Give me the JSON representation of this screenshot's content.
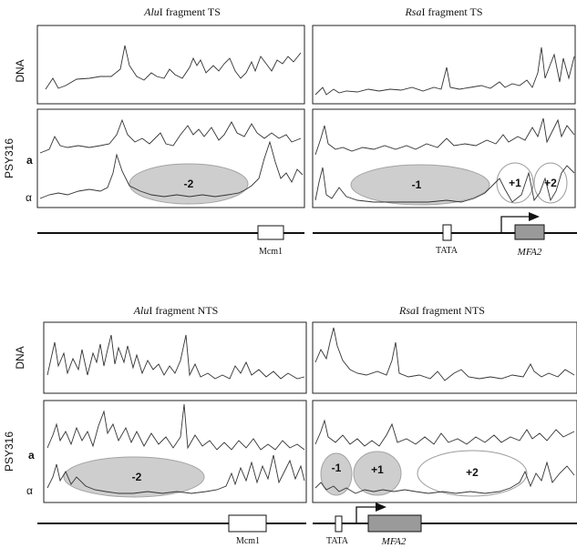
{
  "top": {
    "left_title_italic": "Alu",
    "left_title_rest": "I fragment TS",
    "right_title_italic": "Rsa",
    "right_title_rest": "I fragment TS",
    "row_dna": "DNA",
    "row_psy": "PSY316",
    "strain_a": "a",
    "strain_alpha": "α",
    "left_nucleosomes": [
      "-2"
    ],
    "right_nucleosomes": [
      "-1",
      "+1",
      "+2"
    ],
    "map_left_label": "Mcm1",
    "map_tata_label": "TATA",
    "map_gene_label": "MFA2"
  },
  "bottom": {
    "left_title_italic": "Alu",
    "left_title_rest": "I fragment NTS",
    "right_title_italic": "Rsa",
    "right_title_rest": "I fragment NTS",
    "row_dna": "DNA",
    "row_psy": "PSY316",
    "strain_a": "a",
    "strain_alpha": "α",
    "left_nucleosomes": [
      "-2"
    ],
    "right_nucleosomes": [
      "-1",
      "+1",
      "+2"
    ],
    "map_left_label": "Mcm1",
    "map_tata_label": "TATA",
    "map_gene_label": "MFA2"
  },
  "colors": {
    "nucleosome_fill": "#c9c9c9",
    "gene_box": "#9a9a9a",
    "trace": "#333333"
  }
}
